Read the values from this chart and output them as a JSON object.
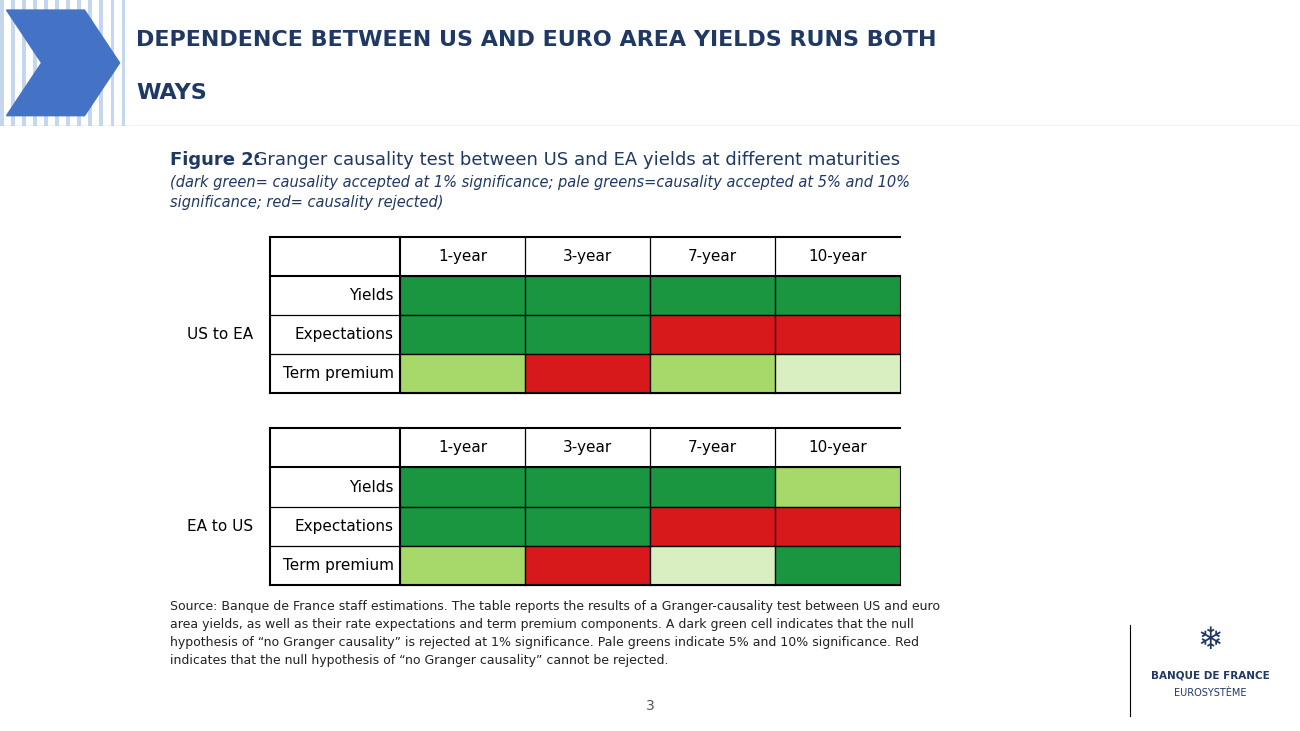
{
  "title_bold": "Figure 2:",
  "title_text": "  Granger causality test between US and EA yields at different maturities",
  "subtitle": "(dark green= causality accepted at 1% significance; pale greens=causality accepted at 5% and 10%\nsignificance; red= causality rejected)",
  "columns": [
    "1-year",
    "3-year",
    "7-year",
    "10-year"
  ],
  "table1_label": "US to EA",
  "table1_rows": [
    "Yields",
    "Expectations",
    "Term premium"
  ],
  "table1_colors": [
    [
      "dark_green",
      "dark_green",
      "dark_green",
      "dark_green"
    ],
    [
      "dark_green",
      "dark_green",
      "red",
      "red"
    ],
    [
      "pale_green",
      "red",
      "pale_green",
      "very_pale_green"
    ]
  ],
  "table2_label": "EA to US",
  "table2_rows": [
    "Yields",
    "Expectations",
    "Term premium"
  ],
  "table2_colors": [
    [
      "dark_green",
      "dark_green",
      "dark_green",
      "pale_green"
    ],
    [
      "dark_green",
      "dark_green",
      "red",
      "red"
    ],
    [
      "pale_green",
      "red",
      "very_pale_green",
      "dark_green"
    ]
  ],
  "color_map": {
    "dark_green": "#1a9641",
    "pale_green": "#a6d96a",
    "very_pale_green": "#d9efc2",
    "red": "#d7191c"
  },
  "source_text": "Source: Banque de France staff estimations. The table reports the results of a Granger-causality test between US and euro\narea yields, as well as their rate expectations and term premium components. A dark green cell indicates that the null\nhypothesis of “no Granger causality” is rejected at 1% significance. Pale greens indicate 5% and 10% significance. Red\nindicates that the null hypothesis of “no Granger causality” cannot be rejected.",
  "page_number": "3",
  "header_title_line1": "DEPENDENCE BETWEEN US AND EURO AREA YIELDS RUNS BOTH",
  "header_title_line2": "WAYS",
  "header_bg_color": "#ffffff",
  "title_color": "#1f3864",
  "subtitle_color": "#1f3864",
  "header_title_color": "#1f3864",
  "bg_color": "#ffffff",
  "cell_text_color": "#000000",
  "source_fontsize": 9.0,
  "col_header_fontsize": 11,
  "row_label_fontsize": 11,
  "group_label_fontsize": 11,
  "chevron_color": "#4472c4",
  "header_stripe_color": "#c5d6ef"
}
